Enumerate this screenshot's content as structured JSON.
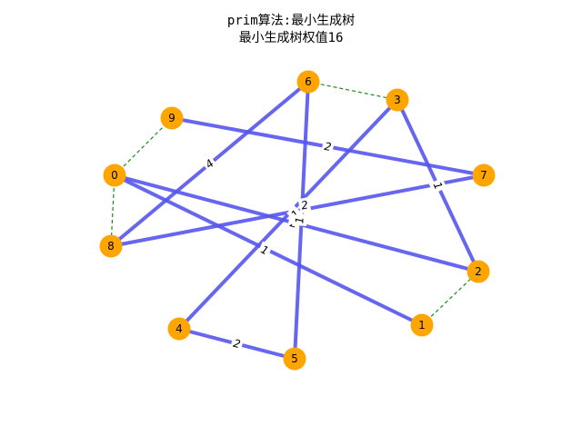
{
  "title": "prim算法:最小生成树",
  "subtitle": "最小生成树权值16",
  "colors": {
    "node_fill": "#FFA500",
    "mst_edge": "#5555ee",
    "other_edge": "#1a8a1a",
    "label_bg": "#ffffff"
  },
  "graph": {
    "nodes": [
      {
        "id": "0",
        "label": "0"
      },
      {
        "id": "1",
        "label": "1"
      },
      {
        "id": "2",
        "label": "2"
      },
      {
        "id": "3",
        "label": "3"
      },
      {
        "id": "4",
        "label": "4"
      },
      {
        "id": "5",
        "label": "5"
      },
      {
        "id": "6",
        "label": "6"
      },
      {
        "id": "7",
        "label": "7"
      },
      {
        "id": "8",
        "label": "8"
      },
      {
        "id": "9",
        "label": "9"
      }
    ],
    "mst_edges": [
      {
        "from": "0",
        "to": "2",
        "weight": "2"
      },
      {
        "from": "0",
        "to": "1",
        "weight": "1"
      },
      {
        "from": "8",
        "to": "6",
        "weight": "4"
      },
      {
        "from": "8",
        "to": "7",
        "weight": "2"
      },
      {
        "from": "9",
        "to": "7",
        "weight": "2"
      },
      {
        "from": "4",
        "to": "3",
        "weight": "1"
      },
      {
        "from": "4",
        "to": "5",
        "weight": "2"
      },
      {
        "from": "6",
        "to": "5",
        "weight": "1"
      },
      {
        "from": "3",
        "to": "2",
        "weight": "1"
      }
    ],
    "other_edges": [
      {
        "from": "0",
        "to": "9"
      },
      {
        "from": "0",
        "to": "8"
      },
      {
        "from": "6",
        "to": "3"
      },
      {
        "from": "1",
        "to": "2"
      }
    ]
  }
}
